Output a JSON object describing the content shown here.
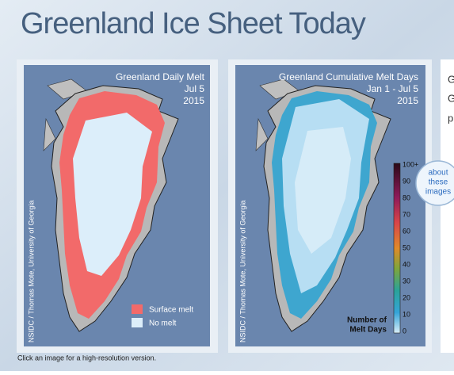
{
  "header": {
    "title": "Greenland Ice Sheet Today"
  },
  "daily_map": {
    "title_lines": [
      "Greenland Daily Melt",
      "Jul 5",
      "2015"
    ],
    "credit": "NSIDC / Thomas Mote, University of Georgia",
    "legend": [
      "Surface melt",
      "No melt"
    ]
  },
  "cumulative_map": {
    "title_lines": [
      "Greenland Cumulative Melt Days",
      "Jan 1 - Jul 5",
      "2015"
    ],
    "credit": "NSIDC / Thomas Mote, University of Georgia",
    "colorbar_labels": [
      "100+",
      90,
      80,
      70,
      60,
      50,
      40,
      30,
      20,
      10,
      0
    ],
    "colorbar_title": [
      "Number of",
      "Melt Days"
    ]
  },
  "side_text": [
    "G",
    "G",
    "p"
  ],
  "about_button": [
    "about",
    "these",
    "images"
  ],
  "caption": "Click an image for a high-resolution version."
}
